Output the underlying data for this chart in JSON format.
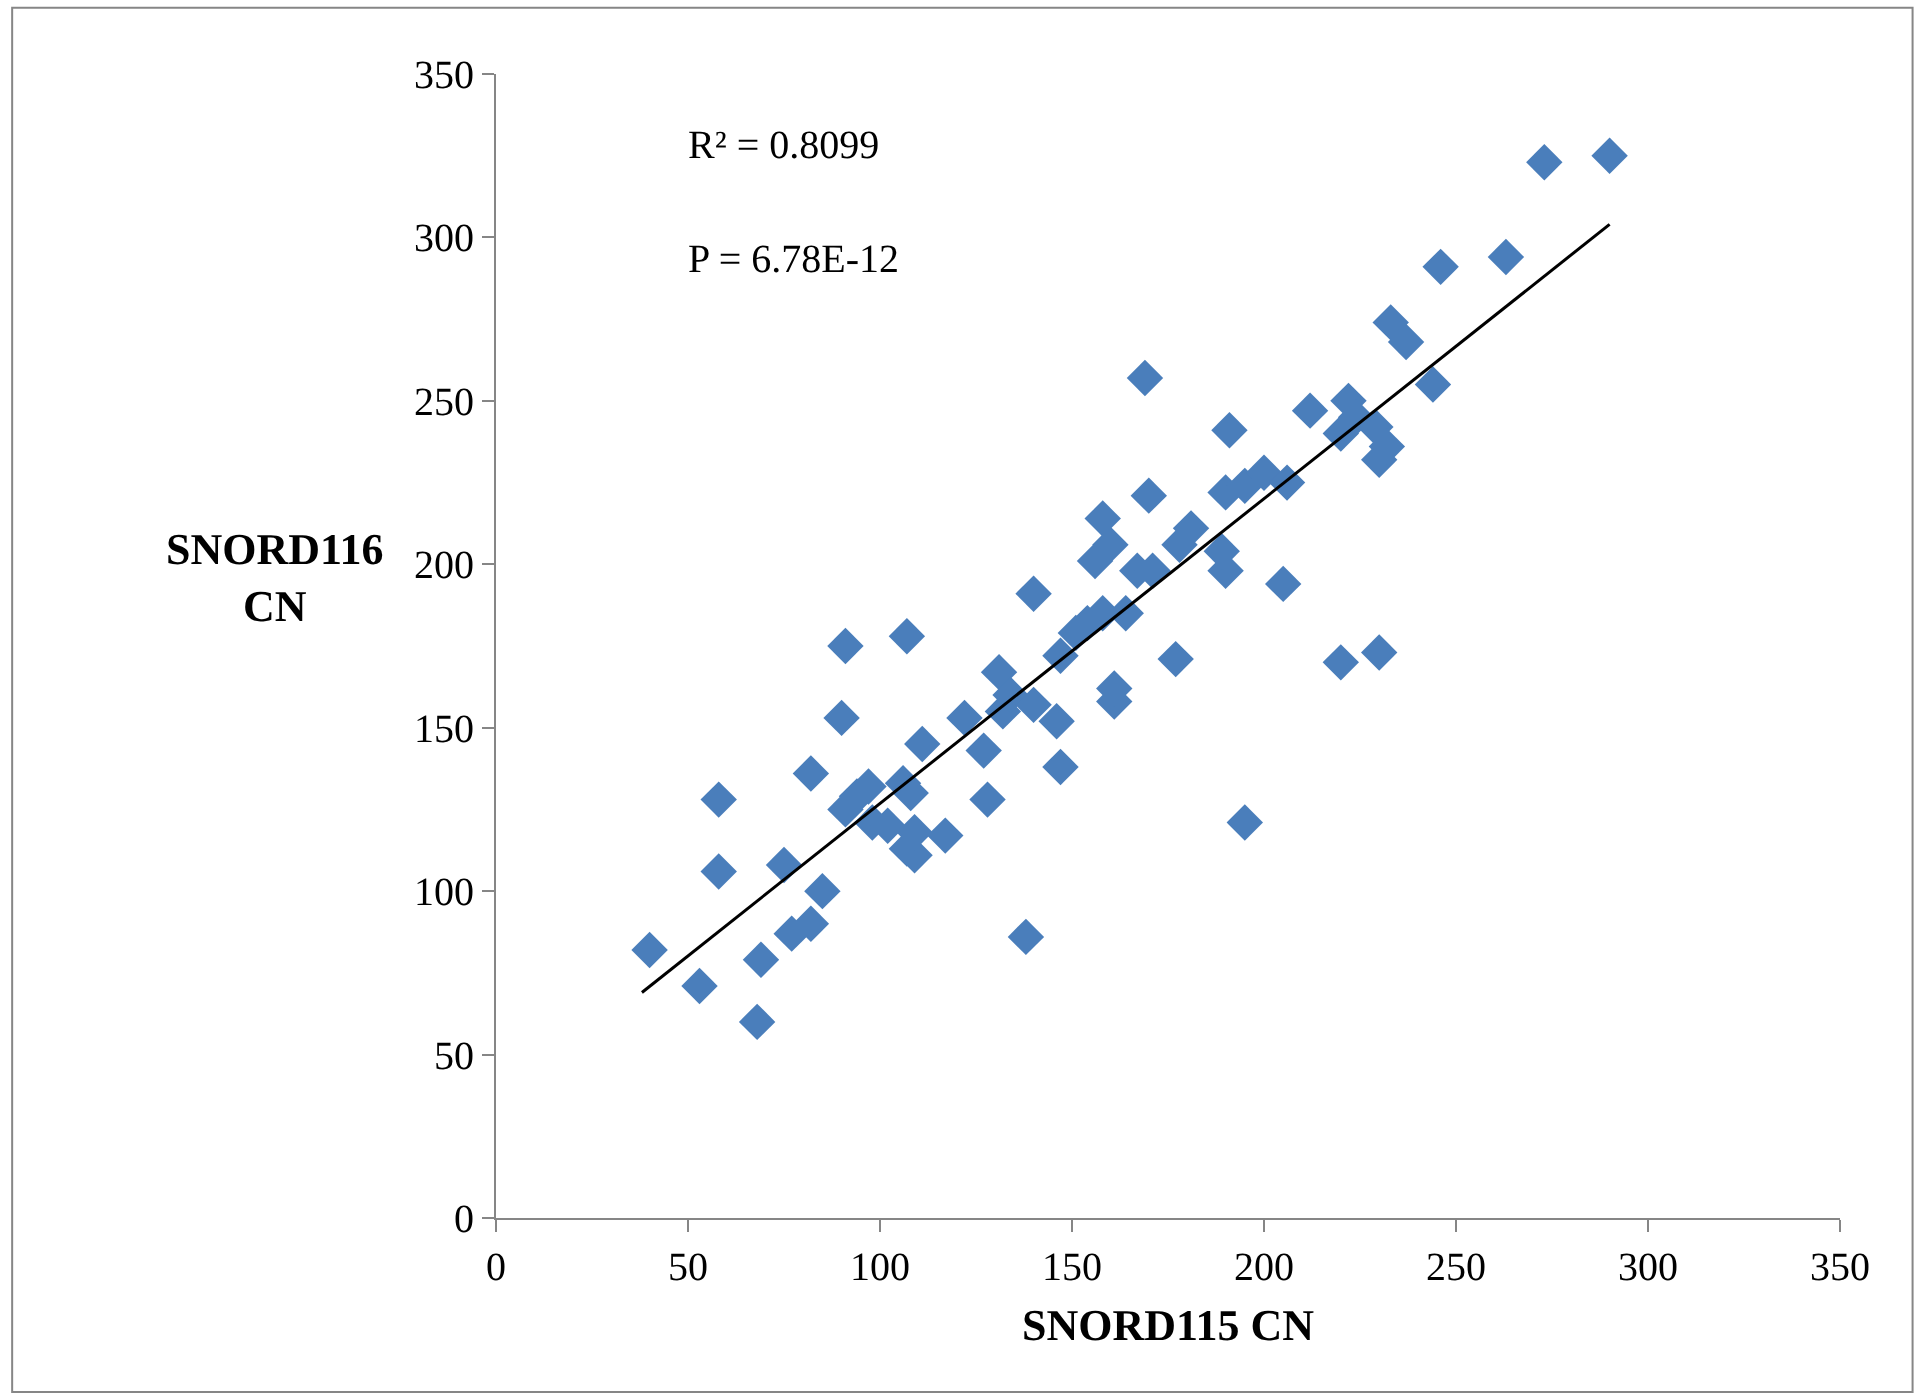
{
  "chart_data": {
    "type": "scatter",
    "xlabel": "SNORD115 CN",
    "ylabel": "SNORD116\nCN",
    "annotations": [
      "R² = 0.8099",
      "P = 6.78E-12"
    ],
    "xlim": [
      0,
      350
    ],
    "xticks": [
      0,
      50,
      100,
      150,
      200,
      250,
      300,
      350
    ],
    "ylim": [
      0,
      350
    ],
    "yticks": [
      0,
      50,
      100,
      150,
      200,
      250,
      300,
      350
    ],
    "marker": "diamond",
    "series": [
      {
        "color": "#4a7ebb",
        "x": [
          40,
          53,
          58,
          58,
          68,
          69,
          75,
          77,
          82,
          82,
          85,
          90,
          91,
          91,
          94,
          97,
          98,
          102,
          106,
          107,
          107,
          109,
          109,
          108,
          111,
          117,
          122,
          127,
          128,
          131,
          132,
          134,
          138,
          140,
          140,
          147,
          146,
          147,
          151,
          154,
          156,
          158,
          158,
          160,
          161,
          161,
          164,
          167,
          169,
          170,
          171,
          177,
          178,
          181,
          190,
          190,
          191,
          189,
          195,
          195,
          200,
          205,
          206,
          212,
          220,
          220,
          222,
          224,
          229,
          230,
          230,
          232,
          233,
          237,
          244,
          246,
          263,
          273,
          290
        ],
        "values": [
          82,
          71,
          128,
          106,
          60,
          79,
          108,
          87,
          136,
          90,
          100,
          153,
          175,
          125,
          129,
          132,
          121,
          120,
          133,
          178,
          113,
          111,
          118,
          130,
          145,
          117,
          153,
          143,
          128,
          167,
          155,
          160,
          86,
          191,
          157,
          138,
          152,
          172,
          179,
          182,
          201,
          214,
          185,
          206,
          158,
          162,
          185,
          198,
          257,
          221,
          198,
          171,
          206,
          211,
          222,
          198,
          241,
          204,
          121,
          224,
          228,
          194,
          225,
          247,
          240,
          170,
          250,
          245,
          242,
          173,
          232,
          236,
          274,
          268,
          255,
          291,
          294,
          323,
          325
        ]
      },
      {
        "type": "line",
        "color": "#000000",
        "line_style": "solid",
        "marker": "none",
        "x": [
          38,
          290
        ],
        "values": [
          69,
          304
        ]
      }
    ]
  }
}
